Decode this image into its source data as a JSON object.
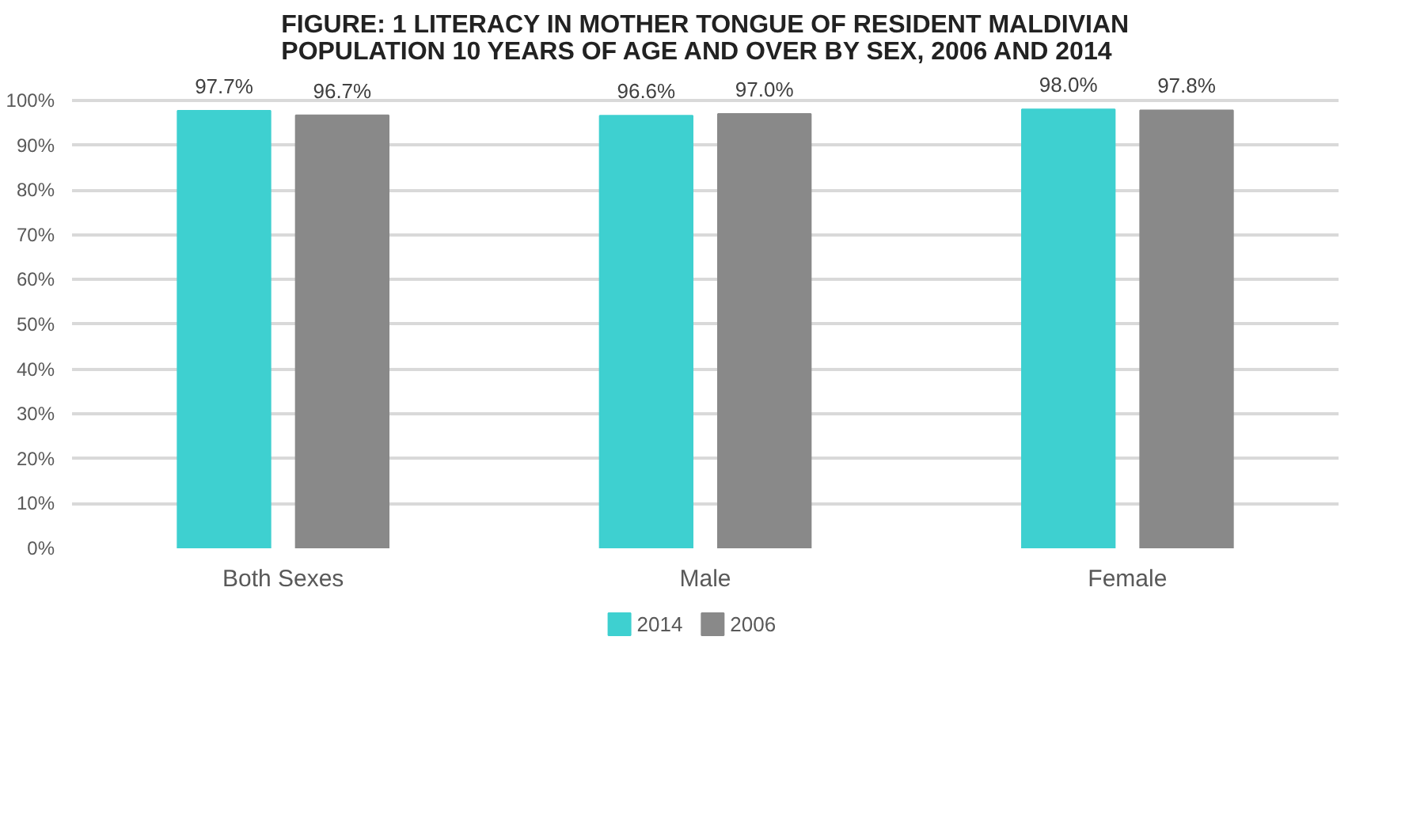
{
  "chart_data": {
    "type": "bar",
    "title": "FIGURE: 1 LITERACY IN MOTHER TONGUE OF RESIDENT MALDIVIAN POPULATION 10 YEARS OF AGE AND OVER BY SEX, 2006 AND 2014",
    "categories": [
      "Both Sexes",
      "Male",
      "Female"
    ],
    "series": [
      {
        "name": "2014",
        "color": "#3ed0d0",
        "values": [
          97.7,
          96.6,
          98.0
        ],
        "value_labels": [
          "97.7%",
          "96.6%",
          "98.0%"
        ]
      },
      {
        "name": "2006",
        "color": "#898989",
        "values": [
          96.7,
          97.0,
          97.8
        ],
        "value_labels": [
          "96.7%",
          "97.0%",
          "97.8%"
        ]
      }
    ],
    "ylim": [
      0,
      100
    ],
    "yticks": [
      {
        "value": 0,
        "label": "0%"
      },
      {
        "value": 10,
        "label": "10%"
      },
      {
        "value": 20,
        "label": "20%"
      },
      {
        "value": 30,
        "label": "30%"
      },
      {
        "value": 40,
        "label": "40%"
      },
      {
        "value": 50,
        "label": "50%"
      },
      {
        "value": 60,
        "label": "60%"
      },
      {
        "value": 70,
        "label": "70%"
      },
      {
        "value": 80,
        "label": "80%"
      },
      {
        "value": 90,
        "label": "90%"
      },
      {
        "value": 100,
        "label": "100%"
      }
    ],
    "grid": "y",
    "legend": "bottom"
  }
}
